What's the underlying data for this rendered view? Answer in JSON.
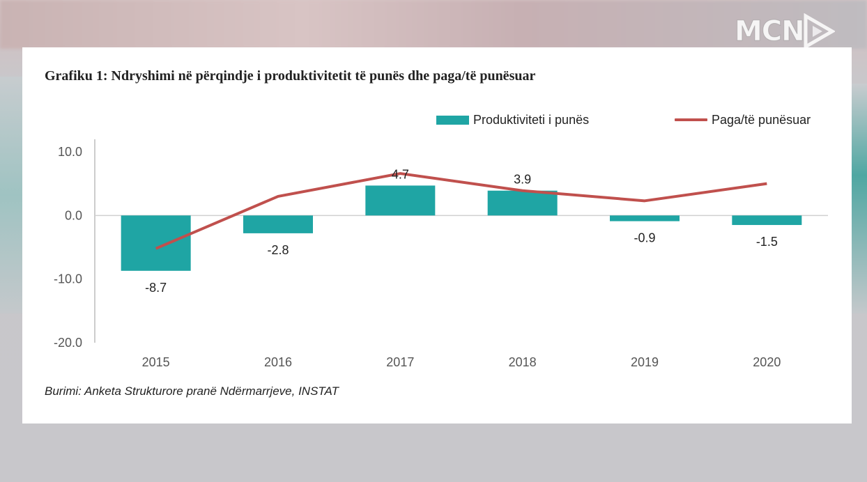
{
  "logo": {
    "text": "MCN"
  },
  "chart_data": {
    "type": "bar",
    "title": "Grafiku 1: Ndryshimi në përqindje i produktivitetit të punës dhe paga/të punësuar",
    "categories": [
      "2015",
      "2016",
      "2017",
      "2018",
      "2019",
      "2020"
    ],
    "series": [
      {
        "name": "Produktiviteti i punës",
        "kind": "bar",
        "values": [
          -8.7,
          -2.8,
          4.7,
          3.9,
          -0.9,
          -1.5
        ],
        "color": "#1fa5a4",
        "labels": [
          "-8.7",
          "-2.8",
          "4.7",
          "3.9",
          "-0.9",
          "-1.5"
        ]
      },
      {
        "name": "Paga/të punësuar",
        "kind": "line",
        "values": [
          -5.2,
          3.0,
          6.6,
          3.9,
          2.3,
          5.0
        ],
        "color": "#c0504d"
      }
    ],
    "ylim": [
      -20,
      10
    ],
    "yticks": [
      10,
      0,
      -10,
      -20
    ],
    "ytick_labels": [
      "10.0",
      "0.0",
      "-10.0",
      "-20.0"
    ],
    "legend_position": "top-right",
    "grid": false,
    "source": "Burimi: Anketa Strukturore pranë Ndërmarrjeve, INSTAT"
  }
}
